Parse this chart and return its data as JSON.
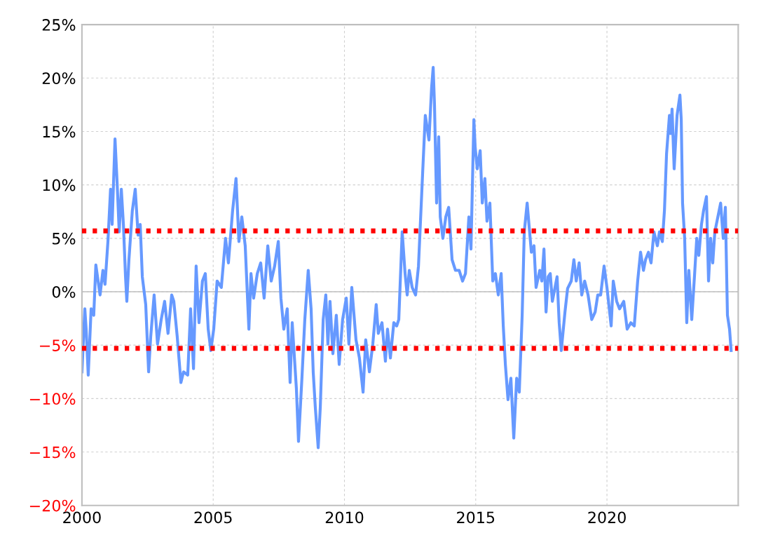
{
  "chart_data": {
    "type": "line",
    "x": [
      2000.0,
      2000.11,
      2000.16,
      2000.24,
      2000.35,
      2000.45,
      2000.53,
      2000.69,
      2000.8,
      2000.88,
      2000.99,
      2001.09,
      2001.15,
      2001.26,
      2001.34,
      2001.42,
      2001.5,
      2001.58,
      2001.66,
      2001.71,
      2001.79,
      2001.92,
      2002.03,
      2002.14,
      2002.22,
      2002.3,
      2002.43,
      2002.54,
      2002.62,
      2002.75,
      2002.88,
      2003.02,
      2003.15,
      2003.28,
      2003.42,
      2003.5,
      2003.63,
      2003.77,
      2003.87,
      2004.03,
      2004.14,
      2004.25,
      2004.35,
      2004.46,
      2004.59,
      2004.7,
      2004.81,
      2004.91,
      2005.02,
      2005.15,
      2005.31,
      2005.47,
      2005.58,
      2005.74,
      2005.87,
      2005.98,
      2006.09,
      2006.22,
      2006.36,
      2006.44,
      2006.54,
      2006.68,
      2006.81,
      2006.94,
      2007.08,
      2007.21,
      2007.34,
      2007.48,
      2007.58,
      2007.69,
      2007.82,
      2007.93,
      2008.01,
      2008.17,
      2008.25,
      2008.38,
      2008.49,
      2008.62,
      2008.73,
      2008.81,
      2008.89,
      2009.0,
      2009.08,
      2009.19,
      2009.29,
      2009.37,
      2009.45,
      2009.56,
      2009.69,
      2009.8,
      2009.93,
      2010.07,
      2010.17,
      2010.28,
      2010.44,
      2010.57,
      2010.71,
      2010.81,
      2010.95,
      2011.08,
      2011.21,
      2011.29,
      2011.43,
      2011.56,
      2011.64,
      2011.75,
      2011.88,
      2011.99,
      2012.07,
      2012.2,
      2012.31,
      2012.39,
      2012.47,
      2012.58,
      2012.71,
      2012.82,
      2012.98,
      2013.08,
      2013.22,
      2013.32,
      2013.38,
      2013.43,
      2013.51,
      2013.59,
      2013.65,
      2013.75,
      2013.86,
      2013.97,
      2014.1,
      2014.23,
      2014.37,
      2014.5,
      2014.61,
      2014.74,
      2014.82,
      2014.93,
      2014.98,
      2015.06,
      2015.17,
      2015.25,
      2015.35,
      2015.43,
      2015.54,
      2015.65,
      2015.75,
      2015.86,
      2015.97,
      2016.05,
      2016.13,
      2016.23,
      2016.34,
      2016.45,
      2016.56,
      2016.66,
      2016.77,
      2016.85,
      2016.96,
      2017.04,
      2017.12,
      2017.22,
      2017.3,
      2017.44,
      2017.52,
      2017.6,
      2017.68,
      2017.76,
      2017.84,
      2017.92,
      2018.1,
      2018.18,
      2018.26,
      2018.4,
      2018.5,
      2018.64,
      2018.74,
      2018.83,
      2018.94,
      2019.04,
      2019.15,
      2019.28,
      2019.42,
      2019.55,
      2019.65,
      2019.76,
      2019.89,
      2020.0,
      2020.16,
      2020.24,
      2020.37,
      2020.48,
      2020.64,
      2020.77,
      2020.91,
      2021.04,
      2021.17,
      2021.28,
      2021.39,
      2021.47,
      2021.58,
      2021.68,
      2021.79,
      2021.92,
      2022.0,
      2022.11,
      2022.19,
      2022.27,
      2022.38,
      2022.43,
      2022.48,
      2022.56,
      2022.67,
      2022.78,
      2022.83,
      2022.88,
      2022.96,
      2023.04,
      2023.12,
      2023.23,
      2023.34,
      2023.42,
      2023.5,
      2023.6,
      2023.68,
      2023.79,
      2023.87,
      2023.95,
      2024.03,
      2024.11,
      2024.33,
      2024.43,
      2024.51,
      2024.59,
      2024.67,
      2024.73
    ],
    "series": [
      {
        "color": "#6699ff",
        "values": [
          -7.5,
          -1.6,
          -3.5,
          -7.8,
          -1.6,
          -2.2,
          2.5,
          -0.3,
          2.0,
          0.7,
          4.7,
          9.6,
          6.3,
          14.3,
          10.2,
          5.6,
          9.6,
          6.3,
          1.4,
          -0.9,
          3.0,
          7.6,
          9.6,
          5.3,
          6.3,
          1.4,
          -1.2,
          -7.5,
          -4.2,
          -0.3,
          -4.9,
          -2.6,
          -0.9,
          -3.9,
          -0.3,
          -0.9,
          -4.2,
          -8.5,
          -7.5,
          -7.8,
          -1.6,
          -7.2,
          2.4,
          -2.9,
          1.0,
          1.7,
          -3.5,
          -5.5,
          -3.5,
          1.0,
          0.4,
          5.0,
          2.7,
          7.6,
          10.6,
          4.7,
          7.0,
          4.3,
          -3.5,
          1.7,
          -0.6,
          1.7,
          2.7,
          -0.6,
          4.3,
          1.0,
          2.4,
          4.7,
          -0.6,
          -3.5,
          -1.6,
          -8.5,
          -2.9,
          -9.1,
          -14.0,
          -8.1,
          -2.6,
          2.0,
          -1.6,
          -7.5,
          -10.8,
          -14.6,
          -10.8,
          -2.6,
          -0.3,
          -4.9,
          -0.9,
          -5.8,
          -2.2,
          -6.8,
          -2.6,
          -0.6,
          -4.9,
          0.4,
          -4.5,
          -6.2,
          -9.4,
          -4.5,
          -7.5,
          -4.9,
          -1.2,
          -3.9,
          -2.9,
          -6.5,
          -3.5,
          -6.2,
          -2.9,
          -3.2,
          -2.6,
          5.6,
          1.7,
          -0.3,
          2.0,
          0.4,
          -0.3,
          2.4,
          11.2,
          16.5,
          14.2,
          19.1,
          21.0,
          17.5,
          8.3,
          14.5,
          7.0,
          5.0,
          7.0,
          7.9,
          3.0,
          2.0,
          2.0,
          1.0,
          1.7,
          7.0,
          4.0,
          16.1,
          13.5,
          11.5,
          13.2,
          8.3,
          10.6,
          6.6,
          8.3,
          1.0,
          1.7,
          -0.3,
          1.7,
          -3.2,
          -6.8,
          -10.1,
          -8.1,
          -13.7,
          -8.1,
          -9.4,
          -2.2,
          5.6,
          8.3,
          6.0,
          3.7,
          4.3,
          0.4,
          2.0,
          1.0,
          4.0,
          -1.9,
          1.4,
          1.7,
          -0.9,
          1.4,
          -2.9,
          -5.5,
          -1.9,
          0.3,
          1.0,
          3.0,
          1.0,
          2.7,
          -0.3,
          1.0,
          -0.3,
          -2.6,
          -1.9,
          -0.3,
          -0.3,
          2.4,
          0.4,
          -3.2,
          1.0,
          -0.9,
          -1.6,
          -0.9,
          -3.5,
          -2.9,
          -3.2,
          1.0,
          3.7,
          2.0,
          3.0,
          3.7,
          2.7,
          5.6,
          4.3,
          5.6,
          4.7,
          7.6,
          12.9,
          16.5,
          14.8,
          17.1,
          11.5,
          16.5,
          18.4,
          16.1,
          8.3,
          5.0,
          -2.9,
          2.0,
          -2.6,
          1.7,
          5.0,
          3.4,
          6.3,
          7.6,
          8.9,
          1.0,
          5.0,
          2.7,
          5.6,
          8.3,
          5.0,
          7.9,
          -2.2,
          -3.5,
          -5.5
        ]
      }
    ],
    "xlim": [
      2000,
      2025
    ],
    "xticks": [
      2000,
      2005,
      2010,
      2015,
      2020
    ],
    "ylim": [
      -20,
      25
    ],
    "yticks": [
      {
        "value": -20,
        "label": "−20%"
      },
      {
        "value": -15,
        "label": "−15%"
      },
      {
        "value": -10,
        "label": "−10%"
      },
      {
        "value": -5,
        "label": "−5%"
      },
      {
        "value": 0,
        "label": "0%"
      },
      {
        "value": 5,
        "label": "5%"
      },
      {
        "value": 10,
        "label": "10%"
      },
      {
        "value": 15,
        "label": "15%"
      },
      {
        "value": 20,
        "label": "20%"
      },
      {
        "value": 25,
        "label": "25%"
      }
    ],
    "ref_lines": [
      {
        "axis": "y",
        "value": 0,
        "color": "#bfbfbf",
        "line_style": "solid"
      },
      {
        "axis": "y",
        "value": 5.7,
        "color": "#ff0000",
        "line_style": "dotted"
      },
      {
        "axis": "y",
        "value": -5.3,
        "color": "#ff0000",
        "line_style": "dotted"
      }
    ],
    "grid": true,
    "marker": "none",
    "line_style": "solid"
  }
}
